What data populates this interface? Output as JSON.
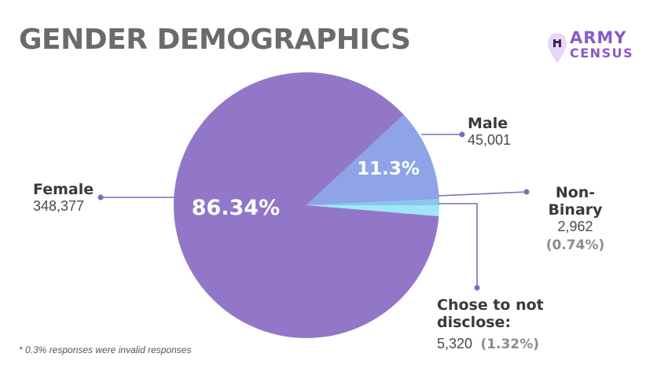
{
  "title": "GENDER DEMOGRAPHICS",
  "logo": {
    "line1": "ARMY",
    "line2": "CENSUS",
    "color": "#8a5ac7"
  },
  "footnote": "* 0.3% responses were invalid responses",
  "labels": {
    "female": {
      "name": "Female",
      "value": "348,377",
      "pct": "86.34%"
    },
    "male": {
      "name": "Male",
      "value": "45,001",
      "pct": "11.3%"
    },
    "nonbinary": {
      "name": "Non-Binary",
      "value": "2,962",
      "pct": "(0.74%)"
    },
    "undisclosed": {
      "name_line1": "Chose to not",
      "name_line2": "disclose:",
      "value": "5,320",
      "pct": "(1.32%)"
    }
  },
  "chart_data": {
    "type": "pie",
    "title": "GENDER DEMOGRAPHICS",
    "slices": [
      {
        "label": "Female",
        "value": 348377,
        "percent": 86.34,
        "color": "#9277c8"
      },
      {
        "label": "Male",
        "value": 45001,
        "percent": 11.3,
        "color": "#8ea4e6"
      },
      {
        "label": "Non-Binary",
        "value": 2962,
        "percent": 0.74,
        "color": "#88c6f0"
      },
      {
        "label": "Chose to not disclose",
        "value": 5320,
        "percent": 1.32,
        "color": "#9fe6f8"
      }
    ],
    "leader_color": "#7a6fb8"
  }
}
